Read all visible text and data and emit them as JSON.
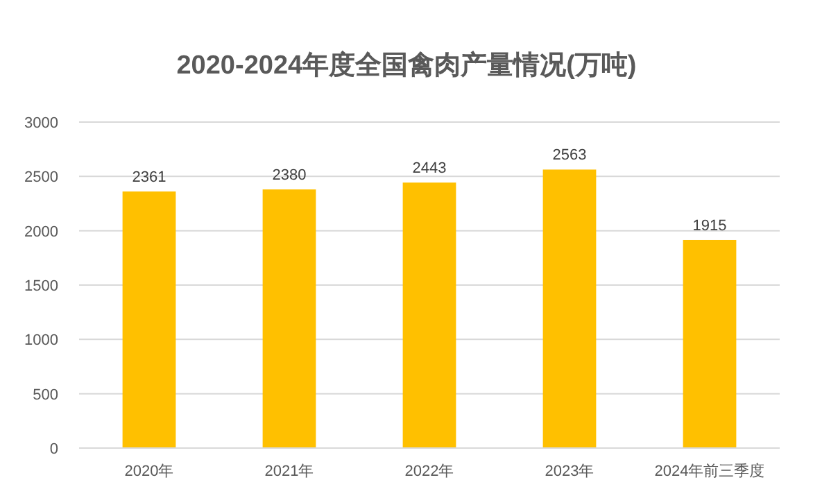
{
  "chart_data": {
    "type": "bar",
    "title": "2020-2024年度全国禽肉产量情况(万吨)",
    "categories": [
      "2020年",
      "2021年",
      "2022年",
      "2023年",
      "2024年前三季度"
    ],
    "values": [
      2361,
      2380,
      2443,
      2563,
      1915
    ],
    "color": "#ffc000",
    "ylim": [
      0,
      3000
    ],
    "yticks": [
      0,
      500,
      1000,
      1500,
      2000,
      2500,
      3000
    ],
    "grid": "y",
    "data_labels": true
  }
}
